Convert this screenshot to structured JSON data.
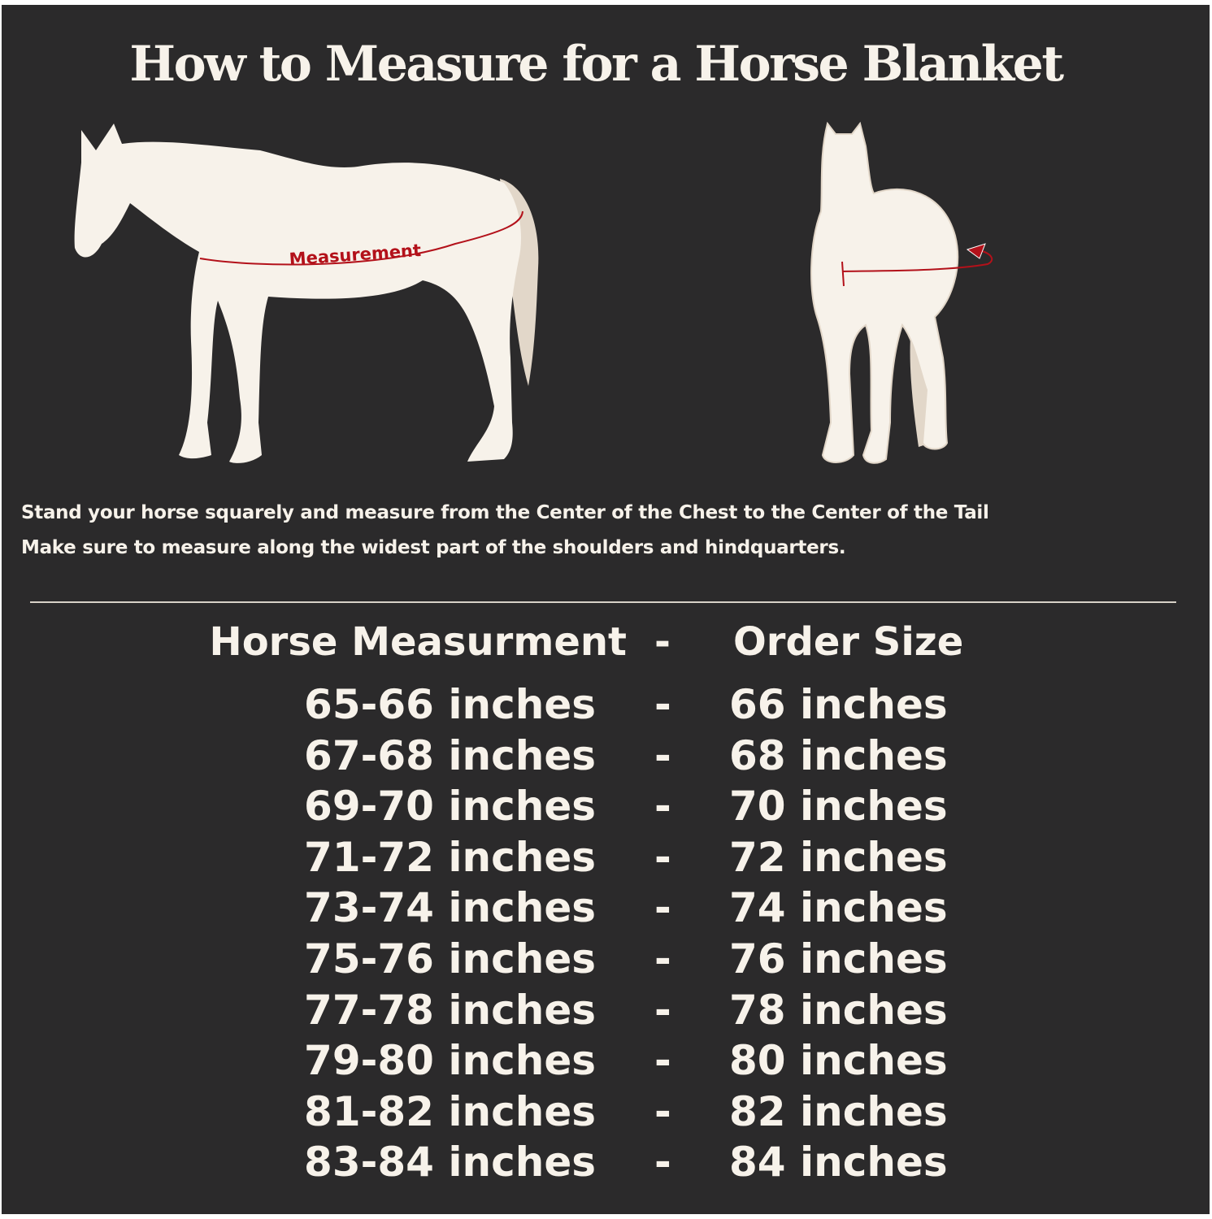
{
  "title": "How to Measure for a Horse Blanket",
  "diagram": {
    "measurement_label": "Measurement",
    "accent_color": "#b3111a",
    "horse_color": "#f7f2ea",
    "tail_color": "#e2d7c9"
  },
  "instructions": [
    "Stand your horse squarely and measure from the Center of the Chest to the Center of the Tail",
    "Make sure to measure along the widest part of the shoulders and hindquarters."
  ],
  "table": {
    "header": {
      "left": "Horse Measurment",
      "sep": "-",
      "right": "Order Size"
    },
    "rows": [
      {
        "measurement": "65-66 inches",
        "sep": "-",
        "size": "66 inches"
      },
      {
        "measurement": "67-68 inches",
        "sep": "-",
        "size": "68 inches"
      },
      {
        "measurement": "69-70 inches",
        "sep": "-",
        "size": "70 inches"
      },
      {
        "measurement": "71-72 inches",
        "sep": "-",
        "size": "72 inches"
      },
      {
        "measurement": "73-74 inches",
        "sep": "-",
        "size": "74 inches"
      },
      {
        "measurement": "75-76 inches",
        "sep": "-",
        "size": "76 inches"
      },
      {
        "measurement": "77-78 inches",
        "sep": "-",
        "size": "78 inches"
      },
      {
        "measurement": "79-80 inches",
        "sep": "-",
        "size": "80 inches"
      },
      {
        "measurement": "81-82 inches",
        "sep": "-",
        "size": "82 inches"
      },
      {
        "measurement": "83-84 inches",
        "sep": "-",
        "size": "84 inches"
      }
    ]
  }
}
